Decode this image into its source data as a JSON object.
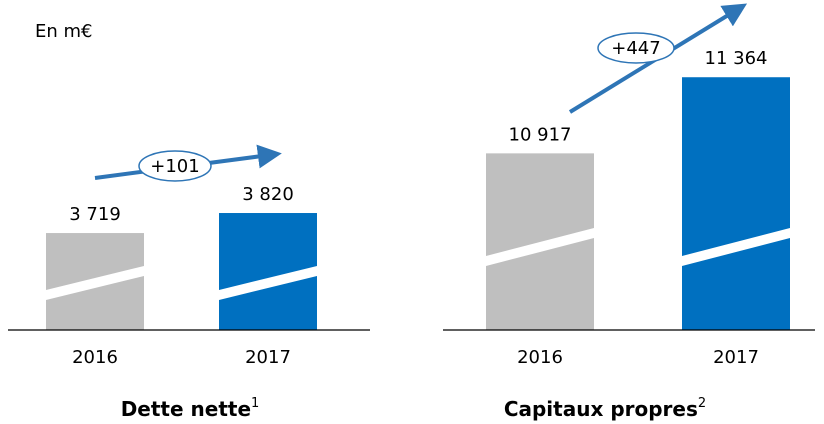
{
  "unit_note": "En m€",
  "chart_data": [
    {
      "type": "bar",
      "title": "Dette nette",
      "title_note": "1",
      "categories": [
        "2016",
        "2017"
      ],
      "values": [
        3719,
        3820
      ],
      "value_labels": [
        "3 719",
        "3 820"
      ],
      "colors": [
        "#bfbfbf",
        "#0070c0"
      ],
      "annotation": "+101",
      "ylim": [
        3230,
        4390
      ]
    },
    {
      "type": "bar",
      "title": "Capitaux propres",
      "title_note": "2",
      "categories": [
        "2016",
        "2017"
      ],
      "values": [
        10917,
        11364
      ],
      "value_labels": [
        "10 917",
        "11 364"
      ],
      "colors": [
        "#bfbfbf",
        "#0070c0"
      ],
      "annotation": "+447",
      "ylim": [
        9880,
        11700
      ]
    }
  ]
}
